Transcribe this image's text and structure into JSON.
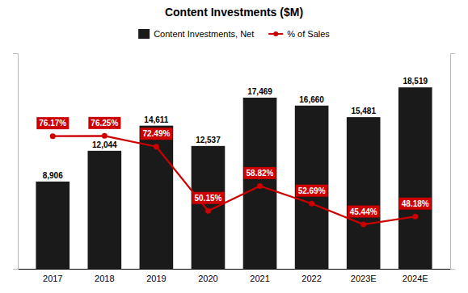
{
  "chart_data": {
    "type": "bar",
    "title": "Content Investments ($M)",
    "categories": [
      "2017",
      "2018",
      "2019",
      "2020",
      "2021",
      "2022",
      "2023E",
      "2024E"
    ],
    "series": [
      {
        "name": "Content Investments, Net",
        "type": "bar",
        "color": "#1a1a1a",
        "values": [
          8906,
          12044,
          14611,
          12537,
          17469,
          16660,
          15481,
          18519
        ],
        "value_labels": [
          "8,906",
          "12,044",
          "14,611",
          "12,537",
          "17,469",
          "16,660",
          "15,481",
          "18,519"
        ]
      },
      {
        "name": "% of Sales",
        "type": "line",
        "color": "#cc0000",
        "marker": "circle",
        "axis": "y2",
        "values": [
          76.17,
          76.25,
          72.49,
          50.15,
          58.82,
          52.69,
          45.44,
          48.18
        ],
        "value_labels": [
          "76.17%",
          "76.25%",
          "72.49%",
          "50.15%",
          "58.82%",
          "52.69%",
          "45.44%",
          "48.18%"
        ]
      }
    ],
    "ylim": [
      0,
      22000
    ],
    "yticks": [],
    "y2lim": [
      30,
      105
    ],
    "y2ticks": [],
    "data_labels": true,
    "tick_labels": "x",
    "grid": false,
    "legend": "top"
  }
}
